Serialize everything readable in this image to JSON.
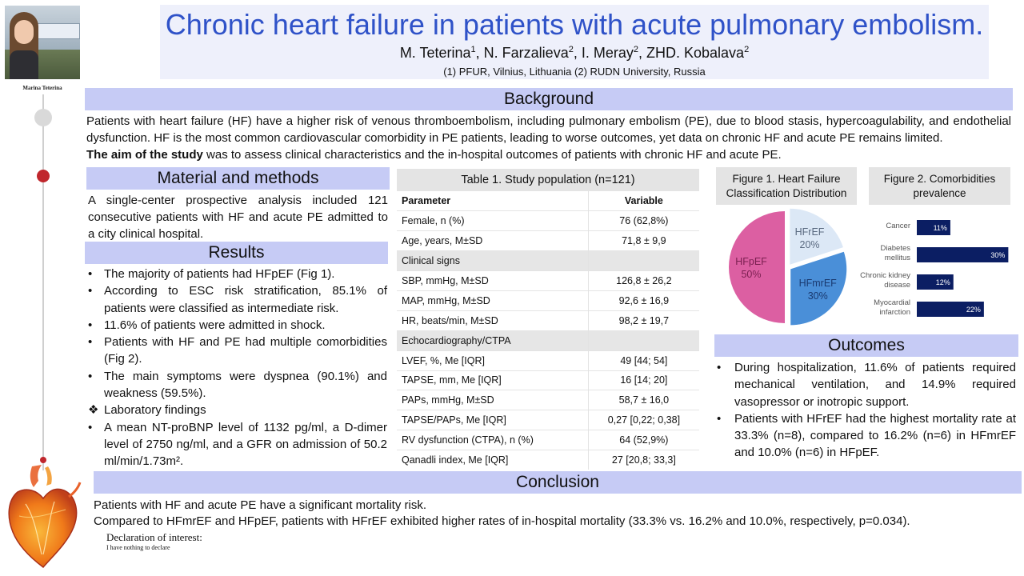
{
  "author_photo_caption": "Marina Teterina",
  "title": "Chronic heart failure in patients with acute pulmonary embolism.",
  "authors": [
    {
      "name": "M. Teterina",
      "sup": "1",
      "sep": ", "
    },
    {
      "name": "N. Farzalieva",
      "sup": "2",
      "sep": ", "
    },
    {
      "name": "I. Meray",
      "sup": "2",
      "sep": ", "
    },
    {
      "name": "ZHD. Kobalava",
      "sup": "2",
      "sep": ""
    }
  ],
  "affiliations": "(1)   PFUR, Vilnius, Lithuania (2) RUDN University, Russia",
  "background": {
    "heading": "Background",
    "text": "Patients with heart failure (HF) have a higher risk of venous thromboembolism, including pulmonary embolism (PE), due to blood stasis, hypercoagulability, and endothelial dysfunction. HF is the most common cardiovascular comorbidity in PE patients, leading to worse outcomes, yet data on chronic HF and acute PE remains limited.",
    "aim_bold": "The aim of the study",
    "aim_rest": " was to assess clinical characteristics and the in-hospital outcomes of patients with chronic HF and acute PE."
  },
  "methods": {
    "heading": "Material and methods",
    "text": "A single-center prospective analysis included 121 consecutive patients with HF and acute PE admitted to a city clinical hospital."
  },
  "results": {
    "heading": "Results",
    "items": [
      {
        "bullet": "•",
        "text": "The majority of patients had HFpEF (Fig 1)."
      },
      {
        "bullet": "•",
        "text": "According to ESC risk stratification, 85.1% of patients were classified as intermediate risk."
      },
      {
        "bullet": "•",
        "text": "11.6% of patients were admitted in shock."
      },
      {
        "bullet": "•",
        "text": "Patients with HF and PE had multiple comorbidities (Fig 2)."
      },
      {
        "bullet": "•",
        "text": "The main symptoms were dyspnea (90.1%) and weakness (59.5%)."
      },
      {
        "bullet": "❖",
        "text": "Laboratory findings"
      },
      {
        "bullet": "•",
        "text": "A mean NT-proBNP level of 1132 pg/ml, a D-dimer level of 2750 ng/ml, and a GFR on admission of 50.2 ml/min/1.73m²."
      }
    ]
  },
  "table": {
    "title": "Table 1. Study population (n=121)",
    "col_parameter": "Parameter",
    "col_variable": "Variable",
    "rows": [
      {
        "p": "Female, n (%)",
        "v": "76 (62,8%)"
      },
      {
        "p": "Age, years, M±SD",
        "v": "71,8 ± 9,9"
      },
      {
        "p": "Clinical signs",
        "v": "",
        "group": true
      },
      {
        "p": "SBP, mmHg, M±SD",
        "v": "126,8 ± 26,2"
      },
      {
        "p": "MAP, mmHg, M±SD",
        "v": "92,6 ± 16,9"
      },
      {
        "p": "HR, beats/min, M±SD",
        "v": "98,2 ± 19,7"
      },
      {
        "p": "Echocardiography/CTPA",
        "v": "",
        "group": true
      },
      {
        "p": "LVEF, %, Me [IQR]",
        "v": "49 [44; 54]"
      },
      {
        "p": "TAPSE, mm, Me [IQR]",
        "v": "16 [14; 20]"
      },
      {
        "p": "PAPs, mmHg, M±SD",
        "v": "58,7 ± 16,0"
      },
      {
        "p": "TAPSE/PAPs, Me [IQR]",
        "v": "0,27 [0,22; 0,38]"
      },
      {
        "p": "RV dysfunction (CTPA), n (%)",
        "v": "64 (52,9%)"
      },
      {
        "p": "Qanadli index, Me [IQR]",
        "v": "27 [20,8; 33,3]"
      }
    ]
  },
  "figure1": {
    "title": "Figure 1. Heart Failure Classification Distribution",
    "slices": [
      {
        "label": "HFrEF",
        "pct_label": "20%",
        "value": 20,
        "color": "#dce8f6"
      },
      {
        "label": "HFmrEF",
        "pct_label": "30%",
        "value": 30,
        "color": "#4a8fd8"
      },
      {
        "label": "HFpEF",
        "pct_label": "50%",
        "value": 50,
        "color": "#dc5fa2"
      }
    ]
  },
  "figure2": {
    "title": "Figure 2. Comorbidities prevalence",
    "max": 32,
    "bar_color": "#0b1e63",
    "bars": [
      {
        "label": [
          "Cancer"
        ],
        "value": 11,
        "value_label": "11%"
      },
      {
        "label": [
          "Diabetes",
          "mellitus"
        ],
        "value": 30,
        "value_label": "30%"
      },
      {
        "label": [
          "Chronic kidney",
          "disease"
        ],
        "value": 12,
        "value_label": "12%"
      },
      {
        "label": [
          "Myocardial",
          "infarction"
        ],
        "value": 22,
        "value_label": "22%"
      }
    ]
  },
  "outcomes": {
    "heading": "Outcomes",
    "items": [
      "During hospitalization, 11.6% of patients required mechanical ventilation, and 14.9% required vasopressor or inotropic support.",
      "Patients with HFrEF had the highest mortality rate at 33.3% (n=8), compared to 16.2% (n=6) in HFmrEF and 10.0% (n=6) in HFpEF."
    ]
  },
  "conclusion": {
    "heading": "Conclusion",
    "line1": "Patients with HF and acute PE have a significant mortality risk.",
    "line2": "Compared to HFmrEF and HFpEF, patients with HFrEF exhibited higher rates of in-hospital mortality (33.3% vs. 16.2% and 10.0%, respectively, p=0.034)."
  },
  "declaration": {
    "heading": "Declaration of interest:",
    "text": "I have nothing to declare"
  }
}
